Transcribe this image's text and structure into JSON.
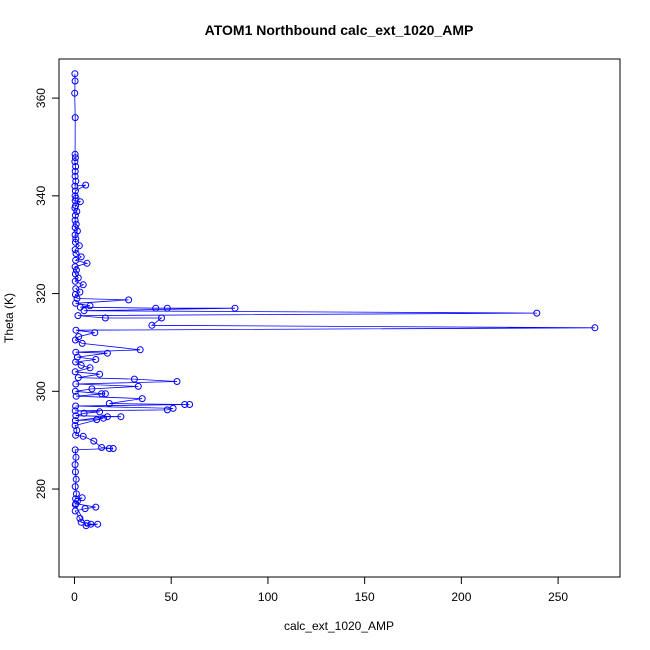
{
  "chart_data": {
    "type": "line",
    "title": "ATOM1 Northbound calc_ext_1020_AMP",
    "xlabel": "calc_ext_1020_AMP",
    "ylabel": "Theta (K)",
    "xlim": [
      -8,
      282
    ],
    "ylim": [
      262,
      368
    ],
    "xticks": [
      0,
      50,
      100,
      150,
      200,
      250
    ],
    "yticks": [
      280,
      300,
      320,
      340,
      360
    ],
    "grid": false,
    "legend": "none",
    "series_color": "#0000ff",
    "markers": "open-circle",
    "series": [
      {
        "values": [
          [
            0.2,
            365
          ],
          [
            0.3,
            363.5
          ],
          [
            0.1,
            361
          ],
          [
            0.4,
            356
          ],
          [
            0.3,
            348.5
          ],
          [
            0.5,
            347.8
          ],
          [
            0.2,
            347
          ],
          [
            0.6,
            346
          ],
          [
            0.4,
            345
          ],
          [
            0.3,
            344
          ],
          [
            0.7,
            343
          ],
          [
            0.2,
            342
          ],
          [
            5.8,
            342.2
          ],
          [
            0.5,
            341
          ],
          [
            0.3,
            340
          ],
          [
            0.8,
            339.5
          ],
          [
            0.4,
            339
          ],
          [
            3.0,
            338.8
          ],
          [
            0.6,
            338
          ],
          [
            0.2,
            337.5
          ],
          [
            1.2,
            336.8
          ],
          [
            0.5,
            336
          ],
          [
            0.3,
            335
          ],
          [
            0.9,
            334.2
          ],
          [
            0.4,
            333.5
          ],
          [
            1.5,
            332.8
          ],
          [
            0.3,
            332
          ],
          [
            0.7,
            331.2
          ],
          [
            0.5,
            330.5
          ],
          [
            2.5,
            329.8
          ],
          [
            0.4,
            329
          ],
          [
            0.8,
            328.2
          ],
          [
            3.5,
            327.5
          ],
          [
            0.6,
            326.8
          ],
          [
            6.5,
            326.2
          ],
          [
            0.3,
            325.5
          ],
          [
            1.0,
            324.8
          ],
          [
            0.5,
            324
          ],
          [
            2.0,
            323.2
          ],
          [
            0.4,
            322.5
          ],
          [
            4.5,
            321.8
          ],
          [
            0.7,
            321
          ],
          [
            2.8,
            320.3
          ],
          [
            0.5,
            319.8
          ],
          [
            1.3,
            319
          ],
          [
            28.0,
            318.7
          ],
          [
            0.6,
            318
          ],
          [
            8.0,
            317.5
          ],
          [
            3.0,
            317.2
          ],
          [
            42.0,
            317
          ],
          [
            48.0,
            317
          ],
          [
            83.0,
            317
          ],
          [
            5.0,
            316.5
          ],
          [
            239.0,
            316
          ],
          [
            1.8,
            315.5
          ],
          [
            16.0,
            315
          ],
          [
            45.0,
            315
          ],
          [
            40.0,
            313.5
          ],
          [
            269.0,
            313
          ],
          [
            0.8,
            312.5
          ],
          [
            10.5,
            312
          ],
          [
            2.2,
            311.2
          ],
          [
            0.5,
            310.5
          ],
          [
            4.0,
            309.8
          ],
          [
            34.0,
            308.5
          ],
          [
            0.7,
            308
          ],
          [
            17.0,
            307.8
          ],
          [
            1.5,
            307
          ],
          [
            11.0,
            306.5
          ],
          [
            0.6,
            306
          ],
          [
            3.5,
            305.3
          ],
          [
            8.0,
            304.8
          ],
          [
            0.4,
            304
          ],
          [
            13.0,
            303.5
          ],
          [
            2.0,
            302.8
          ],
          [
            31.0,
            302.5
          ],
          [
            53.0,
            302
          ],
          [
            0.7,
            301.5
          ],
          [
            33.0,
            301
          ],
          [
            9.0,
            300.5
          ],
          [
            0.5,
            300
          ],
          [
            14.0,
            299.5
          ],
          [
            16.0,
            299.5
          ],
          [
            0.9,
            299
          ],
          [
            35.0,
            298.5
          ],
          [
            18.0,
            297.5
          ],
          [
            57.0,
            297.3
          ],
          [
            59.5,
            297.3
          ],
          [
            0.6,
            297
          ],
          [
            51.0,
            296.5
          ],
          [
            48.0,
            296.2
          ],
          [
            0.4,
            296
          ],
          [
            13.0,
            295.8
          ],
          [
            5.0,
            295.5
          ],
          [
            0.7,
            295
          ],
          [
            24.0,
            294.8
          ],
          [
            17.0,
            294.8
          ],
          [
            0.5,
            294
          ],
          [
            11.5,
            294.2
          ],
          [
            15.0,
            294.5
          ],
          [
            0.3,
            293
          ],
          [
            1.2,
            292
          ],
          [
            0.6,
            291
          ],
          [
            4.5,
            290.8
          ],
          [
            10.0,
            289.8
          ],
          [
            14.0,
            288.5
          ],
          [
            20.0,
            288.3
          ],
          [
            18.0,
            288.3
          ],
          [
            0.4,
            288
          ],
          [
            0.8,
            286.5
          ],
          [
            0.3,
            285
          ],
          [
            0.5,
            283.5
          ],
          [
            0.9,
            282
          ],
          [
            0.4,
            280.5
          ],
          [
            1.0,
            279
          ],
          [
            0.6,
            278
          ],
          [
            4.0,
            278.2
          ],
          [
            1.5,
            277.5
          ],
          [
            0.7,
            277
          ],
          [
            11.0,
            276.3
          ],
          [
            5.5,
            276
          ],
          [
            0.4,
            275.5
          ],
          [
            2.8,
            274
          ],
          [
            3.5,
            273.2
          ],
          [
            6.5,
            273
          ],
          [
            8.5,
            272.8
          ],
          [
            12.0,
            272.8
          ],
          [
            6.0,
            272.5
          ],
          [
            0.5,
            276.8
          ]
        ]
      }
    ]
  }
}
